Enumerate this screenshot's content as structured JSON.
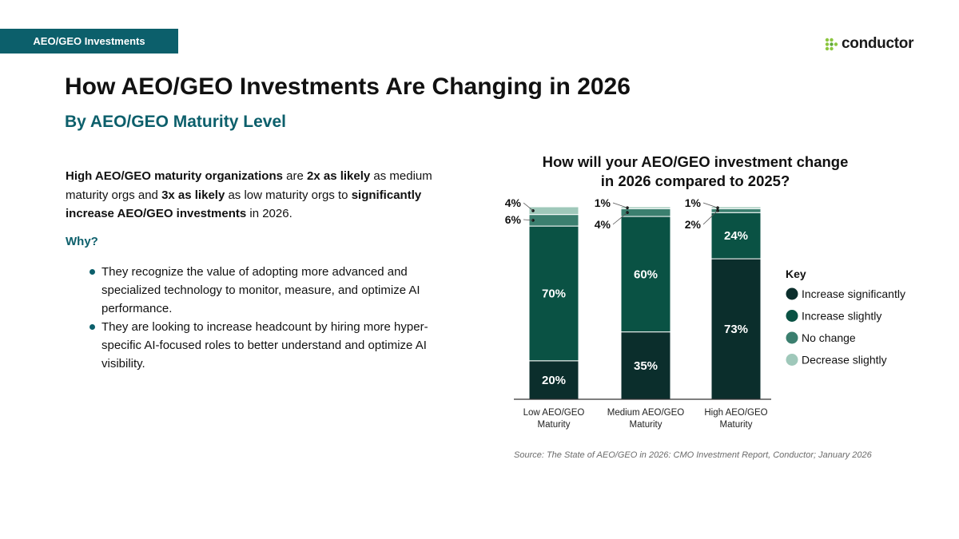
{
  "header": {
    "tag": "AEO/GEO Investments",
    "logo_text": "conductor",
    "logo_icon": "conductor-dots-icon"
  },
  "title": "How AEO/GEO Investments Are Changing in 2026",
  "subtitle": "By AEO/GEO Maturity Level",
  "intro": {
    "p1": "High AEO/GEO maturity organizations",
    "p2": " are ",
    "p3": "2x as likely",
    "p4": " as medium maturity orgs and ",
    "p5": "3x as likely",
    "p6": " as low maturity orgs to ",
    "p7": "significantly increase AEO/GEO investments",
    "p8": " in 2026."
  },
  "why_label": "Why?",
  "bullets": [
    "They recognize the value of adopting more advanced and specialized technology to monitor, measure, and optimize AI performance.",
    "They are looking to increase headcount by hiring more hyper-specific AI-focused roles to better understand and optimize AI visibility."
  ],
  "chart_data": {
    "type": "bar",
    "stacked": true,
    "title": "How will your AEO/GEO investment change in 2026 compared to 2025?",
    "title_lines": [
      "How will your AEO/GEO investment change",
      "in 2026 compared to 2025?"
    ],
    "categories": [
      "Low AEO/GEO Maturity",
      "Medium AEO/GEO Maturity",
      "High AEO/GEO Maturity"
    ],
    "category_lines": [
      [
        "Low AEO/GEO",
        "Maturity"
      ],
      [
        "Medium AEO/GEO",
        "Maturity"
      ],
      [
        "High AEO/GEO",
        "Maturity"
      ]
    ],
    "series": [
      {
        "name": "Increase significantly",
        "color": "#0b2e2c",
        "values": [
          20,
          35,
          73
        ]
      },
      {
        "name": "Increase slightly",
        "color": "#0a5244",
        "values": [
          70,
          60,
          24
        ]
      },
      {
        "name": "No change",
        "color": "#3b7f6f",
        "values": [
          6,
          4,
          2
        ]
      },
      {
        "name": "Decrease slightly",
        "color": "#9fc8ba",
        "values": [
          4,
          1,
          1
        ]
      }
    ],
    "legend_title": "Key",
    "legend_position": "right",
    "value_suffix": "%",
    "ylim": [
      0,
      100
    ],
    "grid": false
  },
  "source": "Source: The State of AEO/GEO in 2026: CMO Investment Report, Conductor; January 2026"
}
